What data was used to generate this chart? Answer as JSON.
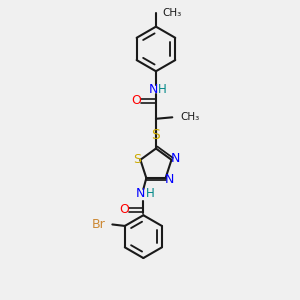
{
  "background_color": "#f0f0f0",
  "bond_color": "#1a1a1a",
  "atom_colors": {
    "N": "#0000ff",
    "O": "#ff0000",
    "S": "#ccaa00",
    "Br": "#cc8833",
    "H": "#008888",
    "C_methyl": "#1a1a1a"
  },
  "figsize": [
    3.0,
    3.0
  ],
  "dpi": 100
}
